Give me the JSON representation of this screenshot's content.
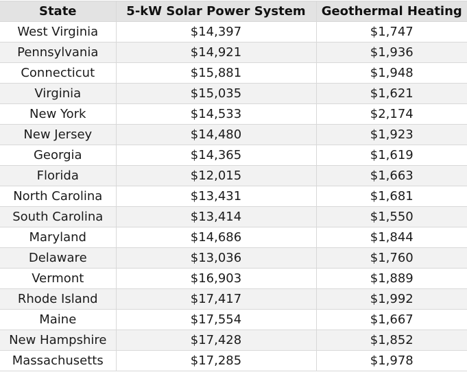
{
  "table": {
    "headers": [
      "State",
      "5-kW Solar Power System",
      "Geothermal Heating"
    ],
    "rows": [
      [
        "West Virginia",
        "$14,397",
        "$1,747"
      ],
      [
        "Pennsylvania",
        "$14,921",
        "$1,936"
      ],
      [
        "Connecticut",
        "$15,881",
        "$1,948"
      ],
      [
        "Virginia",
        "$15,035",
        "$1,621"
      ],
      [
        "New York",
        "$14,533",
        "$2,174"
      ],
      [
        "New Jersey",
        "$14,480",
        "$1,923"
      ],
      [
        "Georgia",
        "$14,365",
        "$1,619"
      ],
      [
        "Florida",
        "$12,015",
        "$1,663"
      ],
      [
        "North Carolina",
        "$13,431",
        "$1,681"
      ],
      [
        "South Carolina",
        "$13,414",
        "$1,550"
      ],
      [
        "Maryland",
        "$14,686",
        "$1,844"
      ],
      [
        "Delaware",
        "$13,036",
        "$1,760"
      ],
      [
        "Vermont",
        "$16,903",
        "$1,889"
      ],
      [
        "Rhode Island",
        "$17,417",
        "$1,992"
      ],
      [
        "Maine",
        "$17,554",
        "$1,667"
      ],
      [
        "New Hampshire",
        "$17,428",
        "$1,852"
      ],
      [
        "Massachusetts",
        "$17,285",
        "$1,978"
      ]
    ]
  },
  "colors": {
    "header_bg": "#e3e3e3",
    "stripe_bg": "#f2f2f2",
    "border": "#d8d8d8"
  }
}
